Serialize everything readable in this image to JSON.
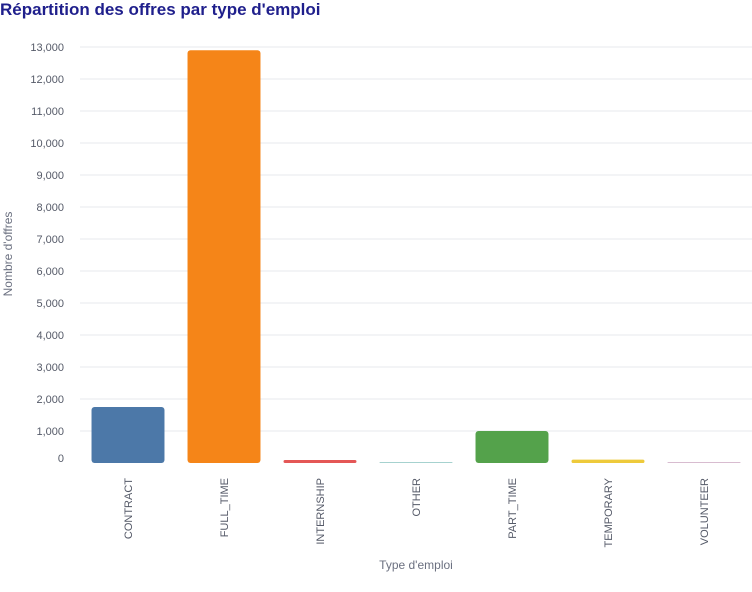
{
  "chart_data": {
    "type": "bar",
    "title": "Répartition des offres par type d'emploi",
    "xlabel": "Type d'emploi",
    "ylabel": "Nombre d'offres",
    "categories": [
      "CONTRACT",
      "FULL_TIME",
      "INTERNSHIP",
      "OTHER",
      "PART_TIME",
      "TEMPORARY",
      "VOLUNTEER"
    ],
    "values": [
      1750,
      12900,
      95,
      20,
      1000,
      105,
      2
    ],
    "colors": [
      "#4c78a8",
      "#f58518",
      "#e45756",
      "#72b7b2",
      "#54a24b",
      "#eeca3b",
      "#b279a2"
    ],
    "ylim": [
      0,
      13000
    ],
    "yticks": [
      0,
      1000,
      2000,
      3000,
      4000,
      5000,
      6000,
      7000,
      8000,
      9000,
      10000,
      11000,
      12000,
      13000
    ],
    "ytick_labels": [
      "0",
      "1,000",
      "2,000",
      "3,000",
      "4,000",
      "5,000",
      "6,000",
      "7,000",
      "8,000",
      "9,000",
      "10,000",
      "11,000",
      "12,000",
      "13,000"
    ],
    "grid": true,
    "legend": false
  }
}
